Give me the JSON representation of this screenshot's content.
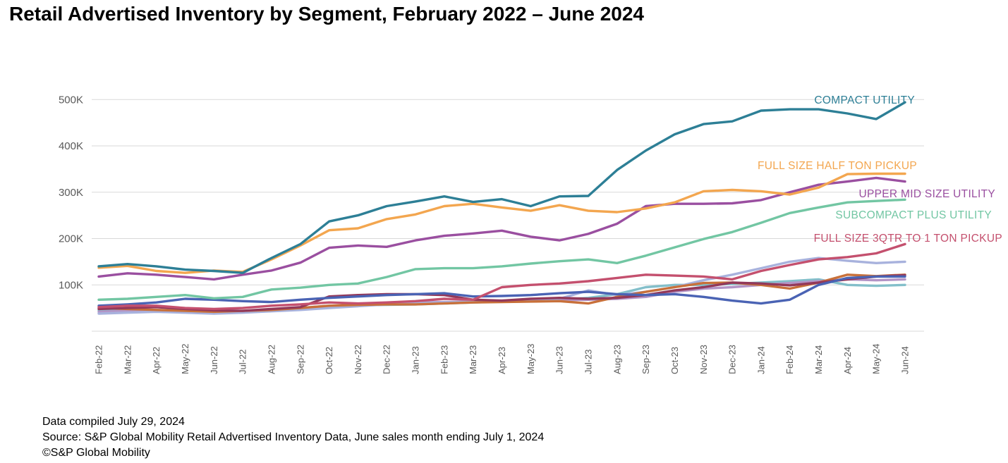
{
  "title": "Retail Advertised Inventory by Segment, February 2022 – June 2024",
  "footer": {
    "line1": "Data compiled July 29, 2024",
    "line2": "Source: S&P Global Mobility Retail Advertised Inventory Data, June sales month ending July 1, 2024",
    "line3": "©S&P Global Mobility"
  },
  "chart_data": {
    "type": "line",
    "units": "advertised inventory (thousands of units)",
    "x": [
      "Feb-22",
      "Mar-22",
      "Apr-22",
      "May-22",
      "Jun-22",
      "Jul-22",
      "Aug-22",
      "Sep-22",
      "Oct-22",
      "Nov-22",
      "Dec-22",
      "Jan-23",
      "Feb-23",
      "Mar-23",
      "Apr-23",
      "May-23",
      "Jun-23",
      "Jul-23",
      "Aug-23",
      "Sep-23",
      "Oct-23",
      "Nov-23",
      "Dec-23",
      "Jan-24",
      "Feb-24",
      "Mar-24",
      "Apr-24",
      "May-24",
      "Jun-24"
    ],
    "yticks": [
      100,
      200,
      300,
      400,
      500
    ],
    "ytick_labels": [
      "100K",
      "200K",
      "300K",
      "400K",
      "500K"
    ],
    "ylim": [
      0,
      520
    ],
    "grid": true,
    "legend_position": "inline-right-of-line",
    "colors": {
      "grid": "#d9d9d9",
      "axis_text": "#595959",
      "title_text": "#000000"
    },
    "series": [
      {
        "name": "COMPACT UTILITY",
        "color": "#2d7f96",
        "values": [
          140,
          145,
          140,
          133,
          130,
          126,
          158,
          188,
          237,
          250,
          270,
          280,
          291,
          279,
          285,
          270,
          291,
          292,
          348,
          390,
          425,
          447,
          453,
          476,
          479,
          479,
          470,
          458,
          494
        ]
      },
      {
        "name": "FULL SIZE HALF TON PICKUP",
        "color": "#f3a64f",
        "values": [
          137,
          141,
          130,
          126,
          131,
          128,
          155,
          185,
          218,
          222,
          242,
          252,
          270,
          275,
          267,
          260,
          272,
          260,
          257,
          265,
          278,
          302,
          305,
          302,
          295,
          310,
          339,
          340,
          340
        ]
      },
      {
        "name": "UPPER MID SIZE UTILITY",
        "color": "#9a4fa0",
        "values": [
          118,
          125,
          122,
          117,
          112,
          122,
          131,
          148,
          180,
          185,
          182,
          196,
          206,
          211,
          217,
          204,
          196,
          210,
          232,
          270,
          275,
          275,
          276,
          283,
          300,
          316,
          323,
          331,
          323
        ]
      },
      {
        "name": "SUBCOMPACT PLUS UTILITY",
        "color": "#72c6a3",
        "values": [
          68,
          70,
          74,
          78,
          71,
          74,
          90,
          94,
          100,
          103,
          117,
          134,
          136,
          136,
          140,
          146,
          151,
          155,
          147,
          163,
          181,
          199,
          214,
          234,
          255,
          267,
          278,
          281,
          284
        ]
      },
      {
        "name": "FULL SIZE 3QTR TO 1 TON PICKUP",
        "color": "#c4506e",
        "values": [
          52,
          55,
          55,
          50,
          48,
          50,
          55,
          58,
          62,
          60,
          62,
          65,
          70,
          68,
          95,
          100,
          103,
          108,
          115,
          122,
          120,
          118,
          112,
          130,
          143,
          155,
          160,
          168,
          188
        ]
      },
      {
        "name": "",
        "color": "#4a63b4",
        "values": [
          55,
          58,
          62,
          70,
          68,
          65,
          63,
          68,
          72,
          75,
          78,
          80,
          82,
          75,
          76,
          78,
          82,
          85,
          80,
          78,
          80,
          74,
          66,
          60,
          68,
          100,
          115,
          118,
          118
        ]
      },
      {
        "name": "",
        "color": "#93395a",
        "values": [
          48,
          50,
          52,
          48,
          45,
          44,
          48,
          52,
          75,
          78,
          80,
          80,
          78,
          68,
          66,
          70,
          72,
          70,
          72,
          78,
          88,
          95,
          105,
          103,
          99,
          105,
          112,
          118,
          121
        ]
      },
      {
        "name": "",
        "color": "#c8703a",
        "values": [
          50,
          48,
          46,
          44,
          42,
          44,
          46,
          50,
          55,
          57,
          58,
          58,
          60,
          62,
          63,
          64,
          65,
          60,
          74,
          85,
          95,
          104,
          105,
          100,
          92,
          105,
          122,
          119,
          122
        ]
      },
      {
        "name": "",
        "color": "#a8b2dd",
        "values": [
          38,
          40,
          42,
          40,
          38,
          40,
          43,
          46,
          50,
          54,
          58,
          60,
          62,
          64,
          66,
          68,
          70,
          88,
          78,
          85,
          95,
          110,
          122,
          136,
          150,
          158,
          152,
          147,
          150
        ]
      },
      {
        "name": "",
        "color": "#b394c6",
        "values": [
          42,
          44,
          46,
          45,
          43,
          42,
          45,
          48,
          52,
          55,
          60,
          62,
          63,
          64,
          65,
          66,
          67,
          68,
          70,
          74,
          85,
          92,
          95,
          100,
          104,
          108,
          112,
          110,
          112
        ]
      },
      {
        "name": "",
        "color": "#83bfca",
        "values": [
          45,
          44,
          43,
          42,
          40,
          42,
          45,
          50,
          55,
          56,
          57,
          58,
          60,
          62,
          64,
          66,
          68,
          72,
          80,
          95,
          100,
          100,
          102,
          105,
          108,
          112,
          100,
          98,
          100
        ]
      }
    ]
  }
}
